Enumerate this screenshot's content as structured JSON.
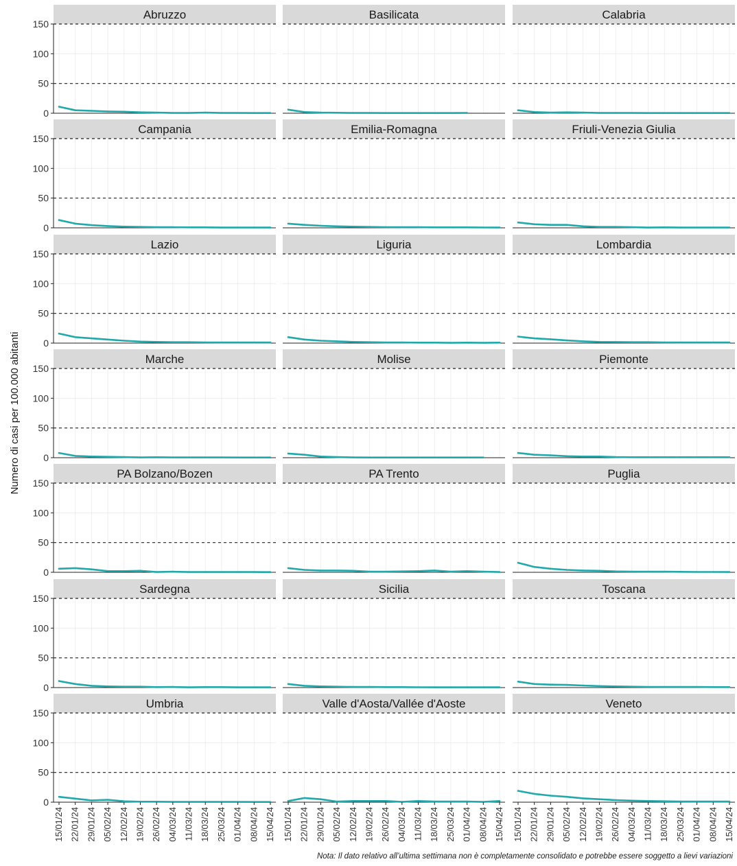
{
  "chart_data": {
    "type": "line",
    "layout": "facet-grid-7x3",
    "ylabel": "Numero di casi per 100.000 abitanti",
    "xlabel": "",
    "ylim": [
      0,
      150
    ],
    "yticks": [
      0,
      50,
      100,
      150
    ],
    "reference_lines": [
      50,
      150
    ],
    "grid": true,
    "x": [
      "15/01/24",
      "22/01/24",
      "29/01/24",
      "05/02/24",
      "12/02/24",
      "19/02/24",
      "26/02/24",
      "04/03/24",
      "11/03/24",
      "18/03/24",
      "25/03/24",
      "01/04/24",
      "08/04/24",
      "15/04/24"
    ],
    "line_color": "#21a8ab",
    "strip_color": "#d9d9d9",
    "note": "Nota: Il dato relativo all’ultima settimana non è completamente consolidato e potrebbe essere soggetto a lievi variazioni",
    "panels": [
      {
        "name": "Abruzzo",
        "values": [
          11,
          5,
          4,
          3,
          2.5,
          1.5,
          1,
          0.5,
          0.5,
          1,
          0.5,
          0.5,
          0.3,
          0.3
        ]
      },
      {
        "name": "Basilicata",
        "values": [
          6,
          2,
          1,
          0.8,
          0.5,
          0.5,
          0.3,
          0.3,
          0.3,
          0.3,
          0.3,
          0.5,
          null,
          null
        ]
      },
      {
        "name": "Calabria",
        "values": [
          5,
          2,
          1,
          1.5,
          1,
          0.5,
          0.5,
          0.5,
          0.3,
          0.3,
          0.3,
          0.3,
          0.3,
          0.3
        ]
      },
      {
        "name": "Campania",
        "values": [
          13,
          7,
          4.5,
          3,
          2,
          1.5,
          1,
          1,
          0.8,
          0.8,
          0.5,
          0.5,
          0.5,
          0.5
        ]
      },
      {
        "name": "Emilia-Romagna",
        "values": [
          7,
          5,
          3.5,
          2.5,
          2,
          1.5,
          1.2,
          1,
          1,
          0.8,
          0.8,
          0.8,
          0.6,
          0.5
        ]
      },
      {
        "name": "Friuli-Venezia Giulia",
        "values": [
          9,
          6,
          5,
          5,
          2.5,
          1.5,
          1.5,
          1,
          0.5,
          0.8,
          0.5,
          0.5,
          0.5,
          0.5
        ]
      },
      {
        "name": "Lazio",
        "values": [
          16,
          10,
          8,
          6,
          4,
          2.5,
          2,
          1.5,
          1.5,
          1.2,
          1,
          1,
          1,
          1
        ]
      },
      {
        "name": "Liguria",
        "values": [
          10,
          6,
          4,
          3,
          2,
          1.5,
          1,
          1,
          0.8,
          0.8,
          0.5,
          0.8,
          0.5,
          0.8
        ]
      },
      {
        "name": "Lombardia",
        "values": [
          11,
          8,
          6.5,
          4.5,
          3,
          2,
          1.8,
          1.5,
          1.5,
          1.2,
          1,
          1,
          1,
          1
        ]
      },
      {
        "name": "Marche",
        "values": [
          8,
          3,
          2,
          1.5,
          1,
          0.5,
          0.8,
          0.5,
          0.5,
          0.5,
          0.5,
          0.3,
          0.3,
          0.3
        ]
      },
      {
        "name": "Molise",
        "values": [
          7,
          5,
          2,
          1,
          0.5,
          0.3,
          0.3,
          0.3,
          0.3,
          0.3,
          0.3,
          0.3,
          0.3,
          null
        ]
      },
      {
        "name": "Piemonte",
        "values": [
          8,
          5,
          4,
          2.5,
          2,
          2,
          1,
          0.8,
          0.8,
          0.8,
          0.8,
          0.8,
          0.8,
          0.8
        ]
      },
      {
        "name": "PA Bolzano/Bozen",
        "values": [
          6,
          7,
          5,
          2,
          2,
          2.5,
          0.5,
          1,
          0.5,
          0.5,
          0.5,
          0.5,
          0.5,
          0.3
        ]
      },
      {
        "name": "PA Trento",
        "values": [
          7,
          4,
          3,
          3,
          2.5,
          1,
          1,
          1.5,
          2,
          3,
          1,
          2,
          1,
          0.5
        ]
      },
      {
        "name": "Puglia",
        "values": [
          16,
          9,
          6,
          4,
          3,
          2.5,
          1.5,
          1.2,
          1,
          1,
          0.8,
          0.6,
          0.6,
          0.5
        ]
      },
      {
        "name": "Sardegna",
        "values": [
          11,
          6,
          3,
          2,
          1.5,
          1.5,
          0.8,
          1,
          0.5,
          0.8,
          0.8,
          0.5,
          0.5,
          0.5
        ]
      },
      {
        "name": "Sicilia",
        "values": [
          6,
          3,
          2,
          1.5,
          1,
          1,
          0.8,
          0.8,
          0.6,
          0.5,
          0.5,
          0.5,
          0.5,
          0.5
        ]
      },
      {
        "name": "Toscana",
        "values": [
          10,
          6,
          5,
          4.5,
          3.5,
          2.5,
          2,
          1.5,
          1.2,
          1,
          1,
          1,
          0.8,
          0.8
        ]
      },
      {
        "name": "Umbria",
        "values": [
          9,
          6,
          3,
          4,
          1.5,
          0.8,
          0.8,
          0.5,
          0.5,
          0.5,
          0.5,
          0.5,
          0.3,
          0.3
        ]
      },
      {
        "name": "Valle d'Aosta/Vallée d'Aoste",
        "values": [
          2,
          7,
          5,
          1,
          2,
          2,
          2,
          0.5,
          2,
          1,
          1,
          1,
          0.5,
          2
        ]
      },
      {
        "name": "Veneto",
        "values": [
          19,
          14,
          11,
          9,
          6.5,
          5,
          3.5,
          2.5,
          2,
          1.5,
          1.2,
          1,
          1,
          1
        ]
      }
    ]
  }
}
